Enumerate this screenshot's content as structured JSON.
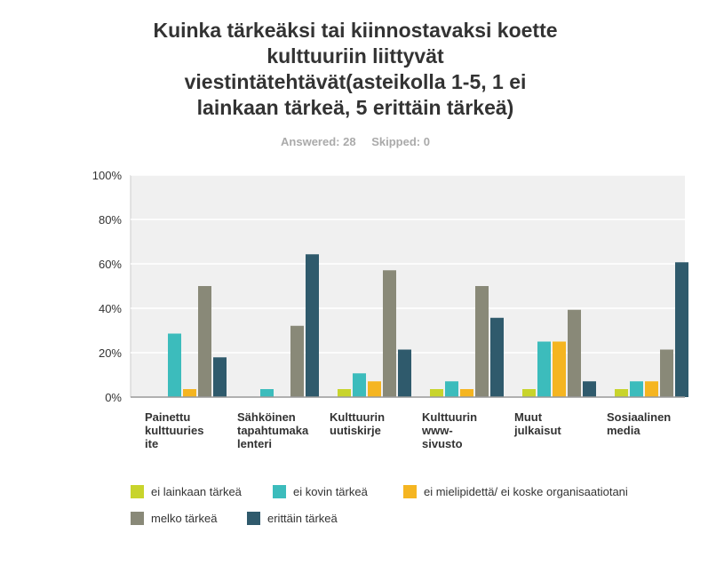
{
  "title_lines": [
    "Kuinka tärkeäksi tai kiinnostavaksi koette",
    "kulttuuriin liittyvät",
    "viestintätehtävät(asteikolla 1-5, 1 ei",
    "lainkaan tärkeä, 5 erittäin tärkeä)"
  ],
  "answered": "Answered: 28",
  "skipped": "Skipped: 0",
  "chart_data": {
    "type": "bar",
    "title": "Kuinka tärkeäksi tai kiinnostavaksi koette kulttuuriin liittyvät viestintätehtävät(asteikolla 1-5, 1 ei lainkaan tärkeä, 5 erittäin tärkeä)",
    "xlabel": "",
    "ylabel": "",
    "ylim": [
      0,
      100
    ],
    "yticks": [
      "0%",
      "20%",
      "40%",
      "60%",
      "80%",
      "100%"
    ],
    "grid": true,
    "legend_position": "bottom",
    "categories": [
      [
        "Painettu",
        "kulttuuries",
        "ite"
      ],
      [
        "Sähköinen",
        "tapahtumaka",
        "lenteri"
      ],
      [
        "Kulttuurin",
        "uutiskirje"
      ],
      [
        "Kulttuurin",
        "www-",
        "sivusto"
      ],
      [
        "Muut",
        "julkaisut"
      ],
      [
        "Sosiaalinen",
        "media"
      ]
    ],
    "series": [
      {
        "name": "ei lainkaan tärkeä",
        "color": "#c8d42c",
        "values": [
          0,
          0,
          3.6,
          3.6,
          3.6,
          3.6
        ]
      },
      {
        "name": "ei kovin tärkeä",
        "color": "#3cbcbc",
        "values": [
          28.6,
          3.6,
          10.7,
          7.1,
          25,
          7.1
        ]
      },
      {
        "name": "ei mielipidettä/ ei koske organisaatiotani",
        "color": "#f5b521",
        "values": [
          3.6,
          0,
          7.1,
          3.6,
          25,
          7.1
        ]
      },
      {
        "name": "melko tärkeä",
        "color": "#898978",
        "values": [
          50,
          32.1,
          57.1,
          50,
          39.3,
          21.4
        ]
      },
      {
        "name": "erittäin tärkeä",
        "color": "#2f5a6c",
        "values": [
          17.9,
          64.3,
          21.4,
          35.7,
          7.1,
          60.7
        ]
      }
    ]
  }
}
